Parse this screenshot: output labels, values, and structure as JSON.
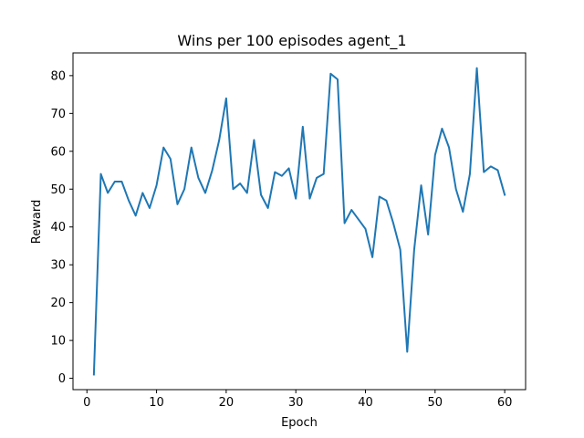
{
  "chart_data": {
    "type": "line",
    "title": "Wins per 100 episodes agent_1",
    "xlabel": "Epoch",
    "ylabel": "Reward",
    "xlim": [
      -2,
      63
    ],
    "ylim": [
      -3,
      86
    ],
    "x_ticks": [
      0,
      10,
      20,
      30,
      40,
      50,
      60
    ],
    "y_ticks": [
      0,
      10,
      20,
      30,
      40,
      50,
      60,
      70,
      80
    ],
    "grid": false,
    "series": [
      {
        "color": "#1f77b4",
        "x": [
          1,
          2,
          3,
          4,
          5,
          6,
          7,
          8,
          9,
          10,
          11,
          12,
          13,
          14,
          15,
          16,
          17,
          18,
          19,
          20,
          21,
          22,
          23,
          24,
          25,
          26,
          27,
          28,
          29,
          30,
          31,
          32,
          33,
          34,
          35,
          36,
          37,
          38,
          39,
          40,
          41,
          42,
          43,
          44,
          45,
          46,
          47,
          48,
          49,
          50,
          51,
          52,
          53,
          54,
          55,
          56,
          57,
          58,
          59,
          60
        ],
        "values": [
          1,
          54,
          49,
          52,
          52,
          47,
          43,
          49,
          45,
          51,
          61,
          58,
          46,
          50,
          61,
          53,
          49,
          55,
          63,
          74,
          50,
          51.5,
          49,
          63,
          48.5,
          45,
          54.5,
          53.5,
          55.5,
          47.5,
          66.5,
          47.5,
          53,
          54,
          80.5,
          79,
          41,
          44.5,
          42,
          39.5,
          32,
          48,
          47,
          41,
          34,
          7,
          34,
          51,
          38,
          59,
          66,
          61,
          50,
          44,
          54,
          82,
          54.5,
          56,
          55,
          48.5
        ]
      }
    ]
  }
}
